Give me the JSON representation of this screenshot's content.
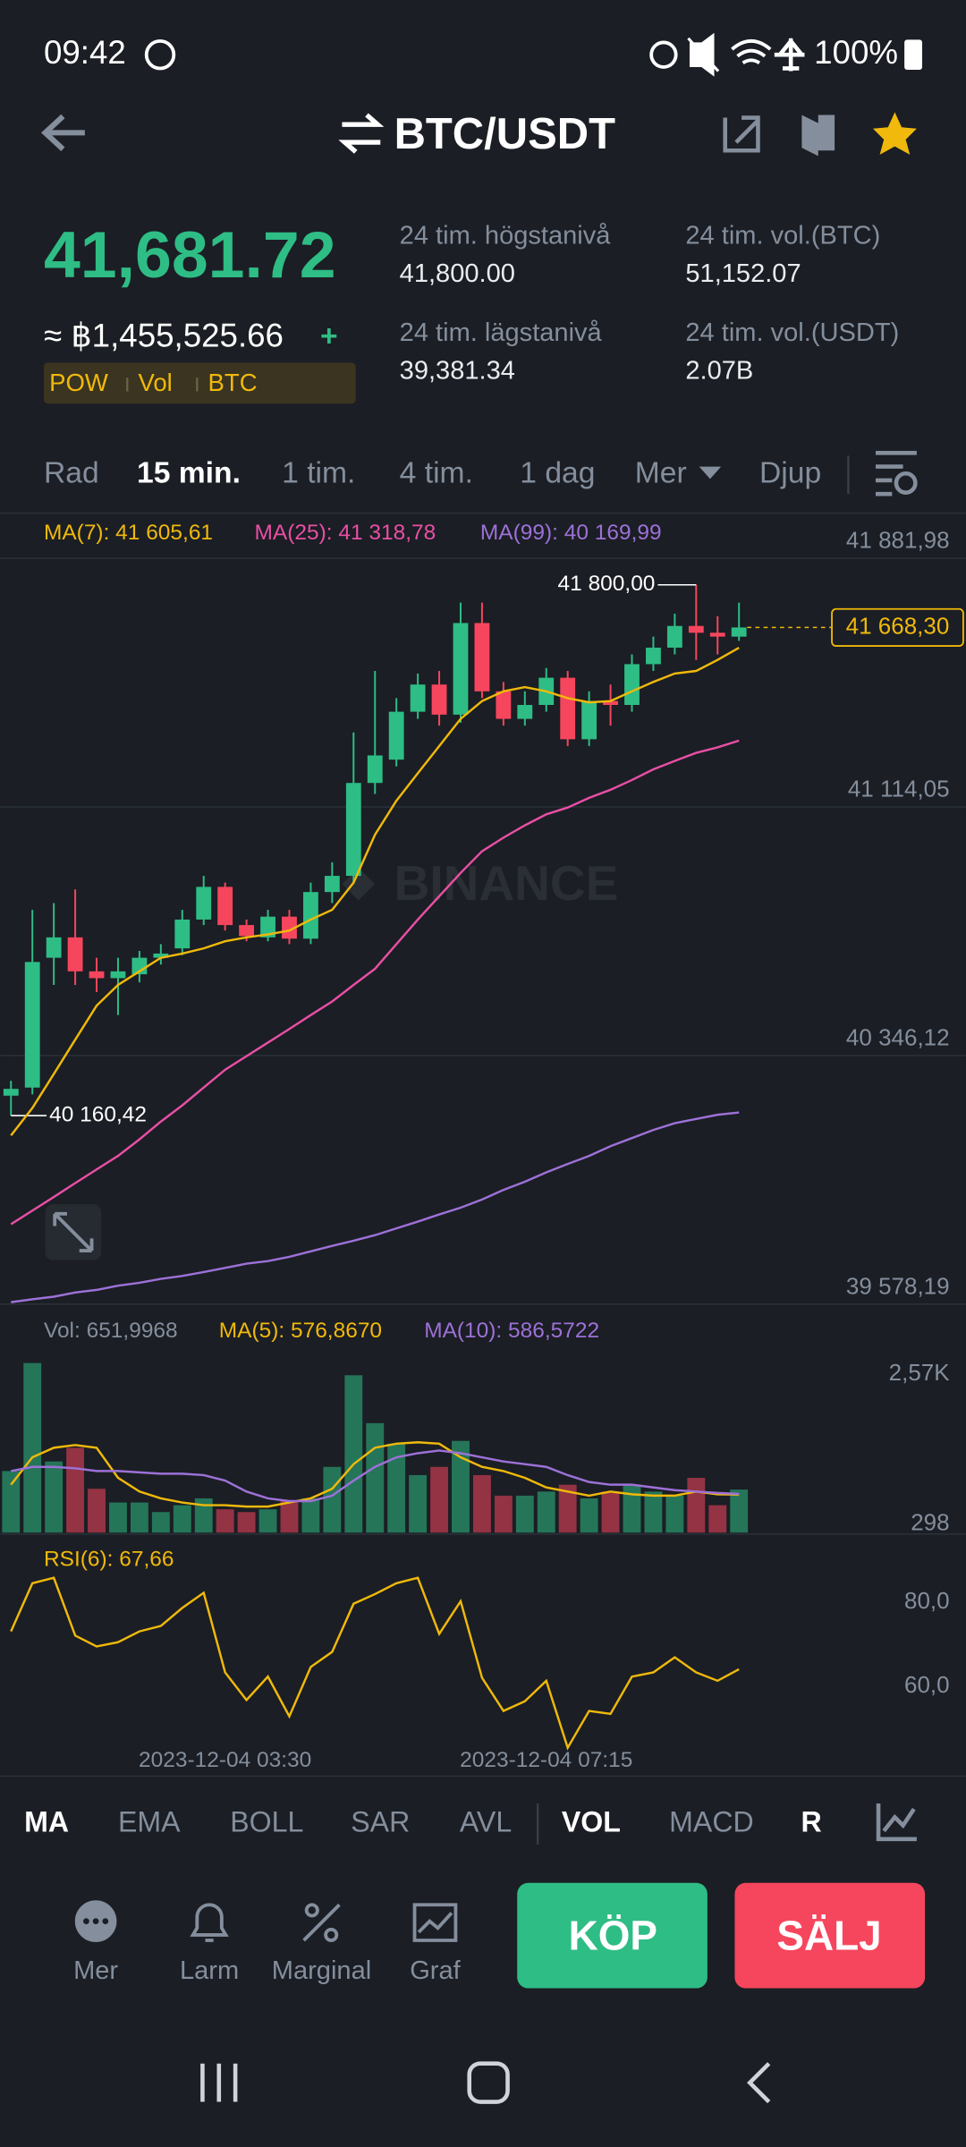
{
  "status_bar": {
    "time": "09:42",
    "battery": "100%"
  },
  "header": {
    "pair": "BTC/USDT"
  },
  "ticker": {
    "last_price": "41,681.72",
    "fiat_price": "≈ ฿1,455,525.66",
    "change_sign": "+",
    "tags": [
      "POW",
      "Vol",
      "BTC"
    ],
    "stats": [
      {
        "label": "24 tim. högstanivå",
        "value": "41,800.00"
      },
      {
        "label": "24 tim. vol.(BTC)",
        "value": "51,152.07"
      },
      {
        "label": "24 tim. lägstanivå",
        "value": "39,381.34"
      },
      {
        "label": "24 tim. vol.(USDT)",
        "value": "2.07B"
      }
    ]
  },
  "intervals": {
    "items": [
      "Rad",
      "15 min.",
      "1 tim.",
      "4 tim.",
      "1 dag",
      "Mer",
      "Djup"
    ],
    "active": [
      1
    ]
  },
  "watermark": "BINANCE",
  "chart_data": [
    {
      "type": "candlestick",
      "up_color": "#2ebd85",
      "down_color": "#f6465d",
      "grid": true,
      "ylim": [
        39578.19,
        41881.98
      ],
      "yticks": [
        {
          "value": 41881.98,
          "label": "41 881,98"
        },
        {
          "value": 41114.05,
          "label": "41 114,05"
        },
        {
          "value": 40346.12,
          "label": "40 346,12"
        },
        {
          "value": 39578.19,
          "label": "39 578,19"
        }
      ],
      "open": [
        40222,
        40247,
        40648,
        40711,
        40606,
        40585,
        40597,
        40648,
        40677,
        40766,
        40867,
        40749,
        40711,
        40775,
        40707,
        40851,
        40901,
        41188,
        41260,
        41408,
        41492,
        41399,
        41682,
        41471,
        41386,
        41429,
        41513,
        41323,
        41441,
        41429,
        41555,
        41606,
        41673,
        41652,
        41640
      ],
      "high": [
        40268,
        40796,
        40817,
        40859,
        40648,
        40648,
        40669,
        40690,
        40796,
        40901,
        40880,
        40766,
        40796,
        40796,
        40880,
        40943,
        41344,
        41534,
        41450,
        41526,
        41534,
        41745,
        41745,
        41500,
        41471,
        41543,
        41534,
        41471,
        41492,
        41585,
        41640,
        41711,
        41800,
        41703,
        41745
      ],
      "low": [
        40160.42,
        40226,
        40564,
        40564,
        40542,
        40471,
        40572,
        40627,
        40656,
        40749,
        40732,
        40699,
        40699,
        40690,
        40690,
        40817,
        40880,
        41154,
        41239,
        41386,
        41365,
        41374,
        41450,
        41365,
        41365,
        41408,
        41302,
        41302,
        41365,
        41408,
        41534,
        41585,
        41568,
        41585,
        41627
      ],
      "close": [
        40243,
        40635,
        40711,
        40606,
        40585,
        40606,
        40648,
        40661,
        40766,
        40867,
        40749,
        40715,
        40775,
        40707,
        40851,
        40901,
        41188,
        41273,
        41408,
        41492,
        41399,
        41682,
        41471,
        41386,
        41429,
        41513,
        41323,
        41441,
        41429,
        41555,
        41606,
        41673,
        41652,
        41640,
        41668.3
      ],
      "series": [
        {
          "name": "MA(7): 41 605,61",
          "color": "#f0b90b",
          "values": [
            40099,
            40184,
            40289,
            40395,
            40500,
            40564,
            40606,
            40648,
            40661,
            40677,
            40699,
            40711,
            40720,
            40732,
            40766,
            40796,
            40880,
            41028,
            41133,
            41218,
            41302,
            41386,
            41441,
            41471,
            41484,
            41471,
            41450,
            41437,
            41441,
            41471,
            41500,
            41526,
            41534,
            41568,
            41605.61
          ]
        },
        {
          "name": "MA(25): 41 318,78",
          "color": "#e84fa5",
          "values": [
            39825,
            39867,
            39909,
            39952,
            39994,
            40036,
            40087,
            40142,
            40192,
            40247,
            40302,
            40344,
            40386,
            40428,
            40471,
            40513,
            40564,
            40614,
            40690,
            40766,
            40838,
            40910,
            40977,
            41019,
            41057,
            41091,
            41112,
            41142,
            41167,
            41197,
            41230,
            41256,
            41281,
            41298,
            41318.78
          ]
        },
        {
          "name": "MA(99): 40 169,99",
          "color": "#9d71d8",
          "values": [
            39584,
            39593,
            39601,
            39614,
            39622,
            39635,
            39644,
            39656,
            39665,
            39677,
            39690,
            39703,
            39711,
            39724,
            39741,
            39758,
            39774,
            39791,
            39812,
            39833,
            39855,
            39876,
            39901,
            39931,
            39956,
            39985,
            40011,
            40036,
            40066,
            40091,
            40116,
            40137,
            40150,
            40163,
            40169.99
          ]
        }
      ],
      "annotations": [
        {
          "value": 41800,
          "label": "41 800,00"
        },
        {
          "value": 40160.42,
          "label": "40 160,42"
        }
      ],
      "last_price": {
        "value": 41668.3,
        "label": "41 668,30"
      }
    },
    {
      "type": "bar",
      "ylim": [
        0,
        2800
      ],
      "yticks": [
        {
          "value": 2570,
          "label": "2,57K"
        },
        298
      ],
      "series": [
        {
          "name": "Vol: 651,9968",
          "kind": "bar",
          "color": "#848e9c",
          "values": [
            933,
            2570,
            1078,
            1286,
            664,
            456,
            456,
            311,
            415,
            519,
            353,
            311,
            353,
            477,
            519,
            996,
            2385,
            1659,
            1348,
            871,
            996,
            1390,
            871,
            560,
            560,
            622,
            726,
            519,
            622,
            726,
            622,
            560,
            830,
            415,
            651.9968
          ]
        },
        {
          "name": "MA(5): 576,8670",
          "kind": "line",
          "color": "#f0b90b",
          "values": [
            726,
            1141,
            1286,
            1327,
            1286,
            830,
            622,
            519,
            456,
            415,
            415,
            394,
            394,
            456,
            519,
            664,
            1037,
            1286,
            1348,
            1369,
            1348,
            1141,
            996,
            933,
            830,
            684,
            622,
            560,
            622,
            581,
            560,
            560,
            622,
            581,
            576.867
          ]
        },
        {
          "name": "MA(10): 586,5722",
          "kind": "line",
          "color": "#9d71d8",
          "values": [
            933,
            996,
            996,
            975,
            933,
            933,
            913,
            892,
            892,
            871,
            788,
            622,
            519,
            477,
            477,
            560,
            788,
            996,
            1141,
            1203,
            1244,
            1203,
            1141,
            1078,
            1037,
            996,
            871,
            767,
            726,
            726,
            684,
            643,
            622,
            601,
            586.5722
          ]
        }
      ]
    },
    {
      "type": "line",
      "ylim": [
        48,
        98
      ],
      "yticks": [
        {
          "value": 80,
          "label": "80,0"
        },
        {
          "value": 60,
          "label": "60,0"
        }
      ],
      "categories": [
        null,
        null,
        null,
        null,
        null,
        null,
        null,
        null,
        null,
        null,
        "2023-12-04 03:30",
        null,
        null,
        null,
        null,
        null,
        null,
        null,
        null,
        null,
        null,
        null,
        null,
        null,
        null,
        "2023-12-04 07:15",
        null,
        null,
        null,
        null,
        null,
        null,
        null,
        null,
        null
      ],
      "series": [
        {
          "name": "RSI(6): 67,66",
          "color": "#f0b90b",
          "values": [
            76.7,
            88.2,
            89.5,
            75.7,
            73.1,
            74.1,
            76.7,
            78.0,
            82.3,
            85.9,
            66.9,
            60.3,
            65.9,
            56.4,
            68.2,
            71.8,
            83.3,
            85.6,
            88.2,
            89.5,
            76.1,
            83.9,
            65.6,
            57.7,
            60.0,
            64.9,
            48.9,
            57.7,
            57.0,
            65.9,
            66.9,
            70.5,
            66.9,
            64.9,
            67.66
          ]
        }
      ]
    }
  ],
  "indicators": {
    "items": [
      "MA",
      "EMA",
      "BOLL",
      "SAR",
      "AVL",
      "VOL",
      "MACD",
      "R"
    ],
    "active": [
      0,
      5,
      7
    ]
  },
  "actions": {
    "items": [
      "Mer",
      "Larm",
      "Marginal",
      "Graf"
    ],
    "buy": "KÖP",
    "sell": "SÄLJ"
  }
}
